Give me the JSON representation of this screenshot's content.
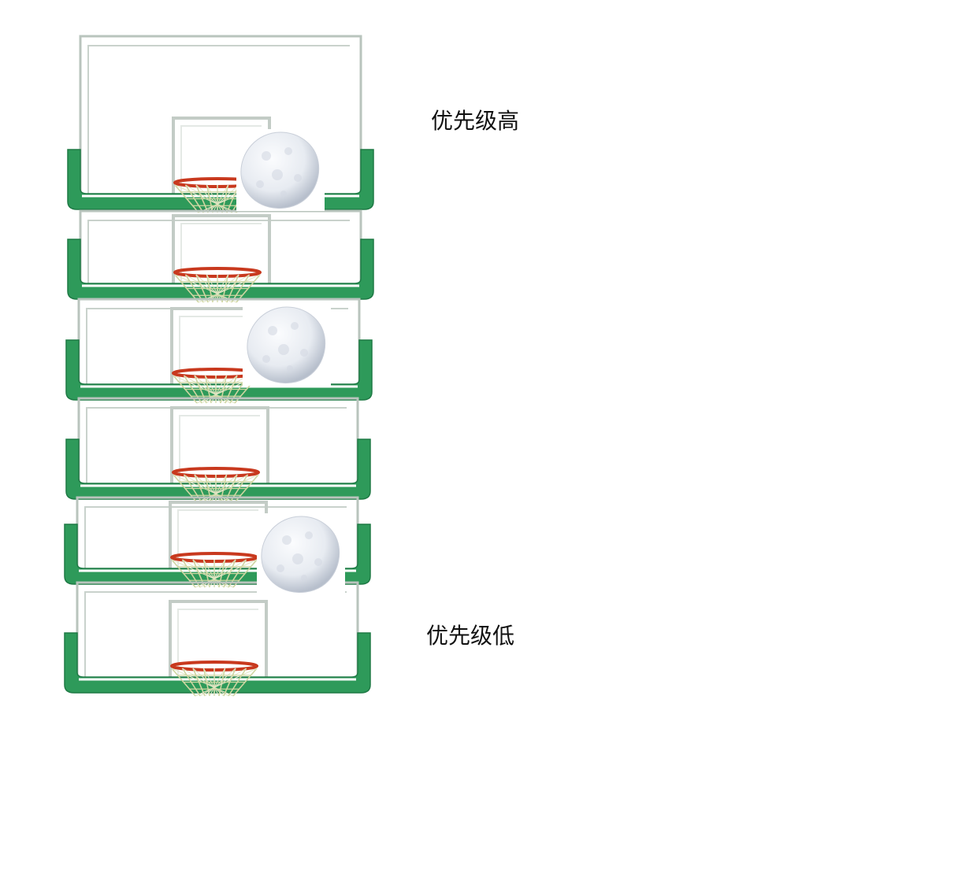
{
  "labels": {
    "high": "优先级高",
    "low": "优先级低"
  },
  "colors": {
    "frame_green": "#2e9a5a",
    "frame_green_dark": "#1f7a45",
    "frame_outline": "#b9c4bd",
    "rim_red": "#c8391e",
    "net": "#cfd6a2",
    "ball": "#e7ebf1",
    "ball_shade": "#b7bfcc"
  },
  "hoops": [
    {
      "name": "hoop-1",
      "has_ball": true
    },
    {
      "name": "hoop-2",
      "has_ball": false
    },
    {
      "name": "hoop-3",
      "has_ball": true
    },
    {
      "name": "hoop-4",
      "has_ball": false
    },
    {
      "name": "hoop-5",
      "has_ball": true
    },
    {
      "name": "hoop-6",
      "has_ball": false
    }
  ]
}
